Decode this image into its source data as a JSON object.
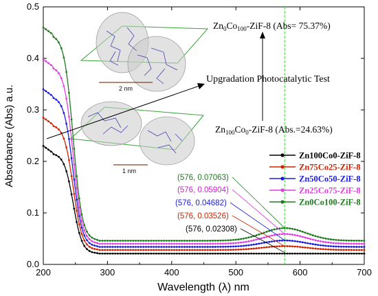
{
  "chart_data": {
    "type": "line",
    "xlabel": "Wavelength (λ) nm",
    "ylabel": "Absorbance (Abs) a.u.",
    "xlim": [
      200,
      700
    ],
    "ylim": [
      0,
      0.5
    ],
    "x_ticks": [
      "200",
      "300",
      "400",
      "500",
      "600",
      "700"
    ],
    "y_ticks": [
      "0.0",
      "0.1",
      "0.2",
      "0.3",
      "0.4",
      "0.5"
    ],
    "grid": false,
    "legend_position": "right-middle",
    "vline_x": 576,
    "series": [
      {
        "name": "Zn100Co0-ZiF-8",
        "color": "#000000",
        "peak": 0.23,
        "baseline": 0.021,
        "bump": 0.0,
        "point": [
          576,
          0.02308
        ],
        "point_label": "(576, 0.02308)",
        "label_color": "#000000"
      },
      {
        "name": "Zn75Co25-ZiF-8",
        "color": "#cc2200",
        "peak": 0.285,
        "baseline": 0.028,
        "bump": 0.0075,
        "point": [
          576,
          0.03526
        ],
        "point_label": "(576, 0.03526)",
        "label_color": "#cc2200"
      },
      {
        "name": "Zn50Co50-ZiF-8",
        "color": "#1a1adb",
        "peak": 0.34,
        "baseline": 0.034,
        "bump": 0.0125,
        "point": [
          576,
          0.04682
        ],
        "point_label": "(576, 0.04682)",
        "label_color": "#1a1adb"
      },
      {
        "name": "Zn25Co75-ZiF-8",
        "color": "#e03ce0",
        "peak": 0.398,
        "baseline": 0.04,
        "bump": 0.019,
        "point": [
          576,
          0.05904
        ],
        "point_label": "(576, 0.05904)",
        "label_color": "#d020d0"
      },
      {
        "name": "Zn0Co100-ZiF-8",
        "color": "#1f7a1f",
        "peak": 0.46,
        "baseline": 0.046,
        "bump": 0.0245,
        "point": [
          576,
          0.07063
        ],
        "point_label": "(576, 0.07063)",
        "label_color": "#1f7a1f"
      }
    ],
    "annotations": {
      "top_prefix": "Zn",
      "top_sub1": "0",
      "top_mid": "Co",
      "top_sub2": "100",
      "top_suffix": "-ZiF-8 (Abs= 75.37%)",
      "middle": "Upgradation Photocatalytic Test",
      "bottom_prefix": "Zn",
      "bottom_sub1": "100",
      "bottom_mid": "Co",
      "bottom_sub2": "0",
      "bottom_suffix": "-ZiF-8 (Abs.=24.63%)",
      "scale_top": "2 nm",
      "scale_bottom": "1 nm"
    }
  }
}
